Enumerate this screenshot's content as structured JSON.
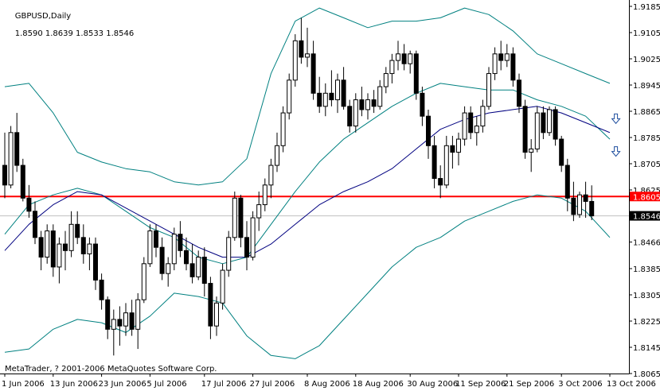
{
  "header": {
    "symbol": "GBPUSD,Daily",
    "ohlc": "1.8590 1.8639 1.8533 1.8546"
  },
  "copyright": "MetaTrader, ? 2001-2006 MetaQuotes Software Corp.",
  "colors": {
    "background": "#ffffff",
    "candle": "#000000",
    "bollinger": "#008080",
    "moving_average": "#000080",
    "horizontal_line": "#ff0000",
    "current_price_line": "#c0c0c0",
    "arrow": "#1e4e9e"
  },
  "icons": [
    "down-arrow-icon",
    "down-arrow-icon"
  ],
  "chart_data": {
    "type": "candlestick",
    "ylim": [
      1.8065,
      1.9185
    ],
    "y_ticks": [
      "1.9185",
      "1.9105",
      "1.9025",
      "1.8945",
      "1.8865",
      "1.8785",
      "1.8705",
      "1.8625",
      "1.8546",
      "1.8466",
      "1.8385",
      "1.8305",
      "1.8225",
      "1.8145",
      "1.8065"
    ],
    "x_labels": [
      "1 Jun 2006",
      "13 Jun 2006",
      "23 Jun 2006",
      "5 Jul 2006",
      "17 Jul 2006",
      "27 Jul 2006",
      "8 Aug 2006",
      "18 Aug 2006",
      "30 Aug 2006",
      "11 Sep 2006",
      "21 Sep 2006",
      "3 Oct 2006",
      "13 Oct 2006"
    ],
    "x_label_index": [
      0,
      8,
      16,
      24,
      33,
      41,
      50,
      58,
      67,
      75,
      83,
      92,
      100
    ],
    "current_price": "1.8546",
    "horizontal_line_price": "1.8605",
    "candles": [
      [
        1.87,
        1.88,
        1.86,
        1.864
      ],
      [
        1.864,
        1.882,
        1.863,
        1.88
      ],
      [
        1.88,
        1.886,
        1.868,
        1.87
      ],
      [
        1.87,
        1.872,
        1.859,
        1.86
      ],
      [
        1.86,
        1.864,
        1.854,
        1.856
      ],
      [
        1.856,
        1.859,
        1.846,
        1.848
      ],
      [
        1.848,
        1.85,
        1.838,
        1.842
      ],
      [
        1.842,
        1.852,
        1.84,
        1.85
      ],
      [
        1.85,
        1.852,
        1.836,
        1.839
      ],
      [
        1.839,
        1.848,
        1.834,
        1.846
      ],
      [
        1.846,
        1.85,
        1.838,
        1.844
      ],
      [
        1.844,
        1.856,
        1.842,
        1.852
      ],
      [
        1.852,
        1.856,
        1.846,
        1.848
      ],
      [
        1.848,
        1.852,
        1.84,
        1.843
      ],
      [
        1.843,
        1.848,
        1.838,
        1.846
      ],
      [
        1.846,
        1.848,
        1.832,
        1.835
      ],
      [
        1.835,
        1.837,
        1.826,
        1.829
      ],
      [
        1.829,
        1.83,
        1.817,
        1.82
      ],
      [
        1.82,
        1.826,
        1.812,
        1.823
      ],
      [
        1.823,
        1.827,
        1.815,
        1.821
      ],
      [
        1.821,
        1.828,
        1.818,
        1.825
      ],
      [
        1.825,
        1.829,
        1.818,
        1.82
      ],
      [
        1.82,
        1.831,
        1.814,
        1.829
      ],
      [
        1.829,
        1.842,
        1.828,
        1.84
      ],
      [
        1.84,
        1.852,
        1.839,
        1.85
      ],
      [
        1.85,
        1.852,
        1.842,
        1.845
      ],
      [
        1.845,
        1.848,
        1.835,
        1.837
      ],
      [
        1.837,
        1.842,
        1.833,
        1.84
      ],
      [
        1.84,
        1.851,
        1.838,
        1.849
      ],
      [
        1.849,
        1.853,
        1.842,
        1.844
      ],
      [
        1.844,
        1.848,
        1.838,
        1.84
      ],
      [
        1.84,
        1.846,
        1.834,
        1.836
      ],
      [
        1.836,
        1.844,
        1.835,
        1.842
      ],
      [
        1.842,
        1.845,
        1.83,
        1.834
      ],
      [
        1.834,
        1.836,
        1.817,
        1.821
      ],
      [
        1.821,
        1.83,
        1.818,
        1.828
      ],
      [
        1.828,
        1.84,
        1.826,
        1.838
      ],
      [
        1.838,
        1.85,
        1.836,
        1.848
      ],
      [
        1.848,
        1.862,
        1.847,
        1.86
      ],
      [
        1.86,
        1.861,
        1.845,
        1.848
      ],
      [
        1.848,
        1.853,
        1.838,
        1.842
      ],
      [
        1.842,
        1.856,
        1.841,
        1.854
      ],
      [
        1.854,
        1.862,
        1.85,
        1.858
      ],
      [
        1.858,
        1.866,
        1.856,
        1.864
      ],
      [
        1.864,
        1.872,
        1.86,
        1.87
      ],
      [
        1.87,
        1.88,
        1.868,
        1.876
      ],
      [
        1.876,
        1.888,
        1.874,
        1.886
      ],
      [
        1.886,
        1.898,
        1.884,
        1.896
      ],
      [
        1.896,
        1.91,
        1.894,
        1.908
      ],
      [
        1.908,
        1.915,
        1.901,
        1.903
      ],
      [
        1.903,
        1.912,
        1.9,
        1.904
      ],
      [
        1.904,
        1.908,
        1.89,
        1.892
      ],
      [
        1.892,
        1.897,
        1.886,
        1.888
      ],
      [
        1.888,
        1.895,
        1.885,
        1.892
      ],
      [
        1.892,
        1.899,
        1.888,
        1.89
      ],
      [
        1.89,
        1.898,
        1.886,
        1.896
      ],
      [
        1.896,
        1.9,
        1.887,
        1.888
      ],
      [
        1.888,
        1.89,
        1.88,
        1.882
      ],
      [
        1.882,
        1.892,
        1.88,
        1.89
      ],
      [
        1.89,
        1.894,
        1.885,
        1.887
      ],
      [
        1.887,
        1.892,
        1.884,
        1.89
      ],
      [
        1.89,
        1.893,
        1.886,
        1.888
      ],
      [
        1.888,
        1.896,
        1.887,
        1.894
      ],
      [
        1.894,
        1.9,
        1.892,
        1.898
      ],
      [
        1.898,
        1.904,
        1.895,
        1.902
      ],
      [
        1.902,
        1.908,
        1.899,
        1.904
      ],
      [
        1.904,
        1.907,
        1.899,
        1.901
      ],
      [
        1.901,
        1.905,
        1.898,
        1.904
      ],
      [
        1.904,
        1.905,
        1.89,
        1.892
      ],
      [
        1.892,
        1.894,
        1.882,
        1.885
      ],
      [
        1.885,
        1.887,
        1.872,
        1.876
      ],
      [
        1.876,
        1.879,
        1.863,
        1.866
      ],
      [
        1.866,
        1.87,
        1.86,
        1.864
      ],
      [
        1.864,
        1.879,
        1.863,
        1.876
      ],
      [
        1.876,
        1.879,
        1.869,
        1.874
      ],
      [
        1.874,
        1.88,
        1.87,
        1.878
      ],
      [
        1.878,
        1.888,
        1.876,
        1.886
      ],
      [
        1.886,
        1.888,
        1.878,
        1.88
      ],
      [
        1.88,
        1.885,
        1.876,
        1.882
      ],
      [
        1.882,
        1.89,
        1.88,
        1.888
      ],
      [
        1.888,
        1.9,
        1.887,
        1.898
      ],
      [
        1.898,
        1.906,
        1.896,
        1.904
      ],
      [
        1.904,
        1.908,
        1.899,
        1.902
      ],
      [
        1.902,
        1.907,
        1.9,
        1.904
      ],
      [
        1.904,
        1.906,
        1.894,
        1.896
      ],
      [
        1.896,
        1.898,
        1.886,
        1.888
      ],
      [
        1.888,
        1.89,
        1.872,
        1.874
      ],
      [
        1.874,
        1.878,
        1.868,
        1.875
      ],
      [
        1.875,
        1.888,
        1.874,
        1.886
      ],
      [
        1.886,
        1.888,
        1.878,
        1.88
      ],
      [
        1.88,
        1.888,
        1.879,
        1.887
      ],
      [
        1.887,
        1.888,
        1.876,
        1.878
      ],
      [
        1.878,
        1.879,
        1.868,
        1.87
      ],
      [
        1.87,
        1.872,
        1.856,
        1.86
      ],
      [
        1.86,
        1.865,
        1.853,
        1.855
      ],
      [
        1.855,
        1.862,
        1.854,
        1.861
      ],
      [
        1.861,
        1.865,
        1.854,
        1.859
      ],
      [
        1.859,
        1.8639,
        1.8533,
        1.8546
      ]
    ],
    "bb_upper": [
      [
        0,
        1.894
      ],
      [
        4,
        1.895
      ],
      [
        8,
        1.886
      ],
      [
        12,
        1.874
      ],
      [
        16,
        1.871
      ],
      [
        20,
        1.869
      ],
      [
        24,
        1.868
      ],
      [
        28,
        1.865
      ],
      [
        32,
        1.864
      ],
      [
        36,
        1.865
      ],
      [
        40,
        1.872
      ],
      [
        44,
        1.898
      ],
      [
        48,
        1.914
      ],
      [
        52,
        1.918
      ],
      [
        56,
        1.915
      ],
      [
        60,
        1.912
      ],
      [
        64,
        1.914
      ],
      [
        68,
        1.914
      ],
      [
        72,
        1.915
      ],
      [
        76,
        1.918
      ],
      [
        80,
        1.916
      ],
      [
        84,
        1.911
      ],
      [
        88,
        1.904
      ],
      [
        92,
        1.901
      ],
      [
        96,
        1.898
      ],
      [
        100,
        1.895
      ]
    ],
    "bb_middle": [
      [
        0,
        1.849
      ],
      [
        4,
        1.858
      ],
      [
        8,
        1.861
      ],
      [
        12,
        1.863
      ],
      [
        16,
        1.861
      ],
      [
        20,
        1.856
      ],
      [
        24,
        1.851
      ],
      [
        28,
        1.848
      ],
      [
        32,
        1.842
      ],
      [
        36,
        1.84
      ],
      [
        40,
        1.842
      ],
      [
        44,
        1.852
      ],
      [
        48,
        1.862
      ],
      [
        52,
        1.871
      ],
      [
        56,
        1.878
      ],
      [
        60,
        1.883
      ],
      [
        64,
        1.888
      ],
      [
        68,
        1.892
      ],
      [
        72,
        1.895
      ],
      [
        76,
        1.894
      ],
      [
        80,
        1.893
      ],
      [
        84,
        1.893
      ],
      [
        88,
        1.89
      ],
      [
        92,
        1.888
      ],
      [
        96,
        1.885
      ],
      [
        100,
        1.878
      ]
    ],
    "bb_lower": [
      [
        0,
        1.813
      ],
      [
        4,
        1.814
      ],
      [
        8,
        1.82
      ],
      [
        12,
        1.823
      ],
      [
        16,
        1.822
      ],
      [
        20,
        1.819
      ],
      [
        24,
        1.824
      ],
      [
        28,
        1.831
      ],
      [
        32,
        1.83
      ],
      [
        36,
        1.828
      ],
      [
        40,
        1.818
      ],
      [
        44,
        1.812
      ],
      [
        48,
        1.811
      ],
      [
        52,
        1.815
      ],
      [
        56,
        1.823
      ],
      [
        60,
        1.831
      ],
      [
        64,
        1.839
      ],
      [
        68,
        1.845
      ],
      [
        72,
        1.848
      ],
      [
        76,
        1.853
      ],
      [
        80,
        1.856
      ],
      [
        84,
        1.859
      ],
      [
        88,
        1.861
      ],
      [
        92,
        1.86
      ],
      [
        96,
        1.856
      ],
      [
        100,
        1.848
      ]
    ],
    "ma": [
      [
        0,
        1.844
      ],
      [
        4,
        1.852
      ],
      [
        8,
        1.858
      ],
      [
        12,
        1.862
      ],
      [
        16,
        1.861
      ],
      [
        20,
        1.857
      ],
      [
        24,
        1.853
      ],
      [
        28,
        1.849
      ],
      [
        32,
        1.845
      ],
      [
        36,
        1.842
      ],
      [
        40,
        1.842
      ],
      [
        44,
        1.846
      ],
      [
        48,
        1.852
      ],
      [
        52,
        1.858
      ],
      [
        56,
        1.862
      ],
      [
        60,
        1.865
      ],
      [
        64,
        1.869
      ],
      [
        68,
        1.875
      ],
      [
        72,
        1.881
      ],
      [
        76,
        1.884
      ],
      [
        80,
        1.886
      ],
      [
        84,
        1.887
      ],
      [
        88,
        1.888
      ],
      [
        92,
        1.886
      ],
      [
        96,
        1.883
      ],
      [
        100,
        1.88
      ]
    ],
    "arrows": [
      [
        101,
        1.884
      ],
      [
        101,
        1.874
      ]
    ]
  }
}
